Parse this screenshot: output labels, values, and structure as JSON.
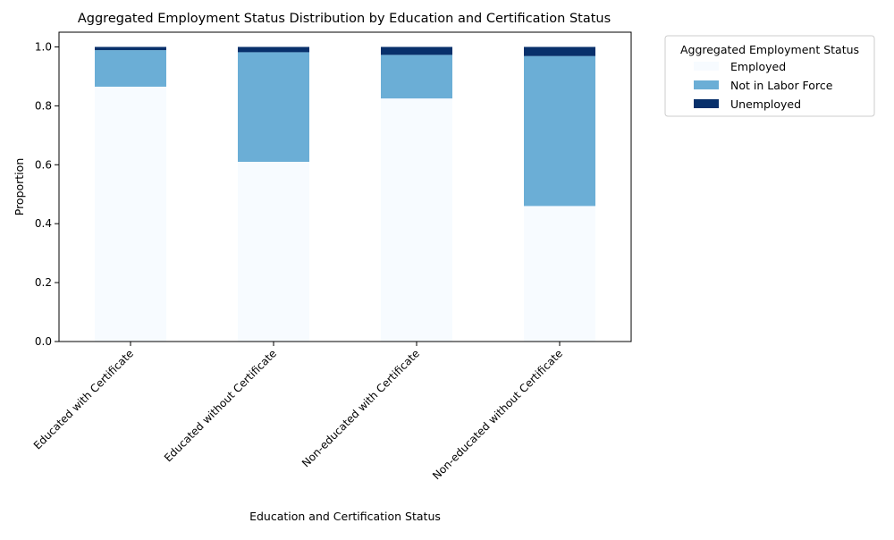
{
  "chart_data": {
    "type": "bar",
    "stacked": true,
    "title": "Aggregated Employment Status Distribution by Education and Certification Status",
    "xlabel": "Education and Certification Status",
    "ylabel": "Proportion",
    "ylim": [
      0,
      1.05
    ],
    "yticks": [
      "0.0",
      "0.2",
      "0.4",
      "0.6",
      "0.8",
      "1.0"
    ],
    "ytick_values": [
      0,
      0.2,
      0.4,
      0.6,
      0.8,
      1.0
    ],
    "grid": false,
    "legend": {
      "title": "Aggregated Employment Status",
      "placement": "outside-top-right"
    },
    "categories": [
      "Educated with Certificate",
      "Educated without Certificate",
      "Non-educated with Certificate",
      "Non-educated without Certificate"
    ],
    "series": [
      {
        "name": "Employed",
        "color": "#f7fbff",
        "values": [
          0.865,
          0.61,
          0.825,
          0.46
        ]
      },
      {
        "name": "Not in Labor Force",
        "color": "#6baed6",
        "values": [
          0.124,
          0.372,
          0.148,
          0.509
        ]
      },
      {
        "name": "Unemployed",
        "color": "#08306b",
        "values": [
          0.011,
          0.018,
          0.027,
          0.031
        ]
      }
    ]
  }
}
